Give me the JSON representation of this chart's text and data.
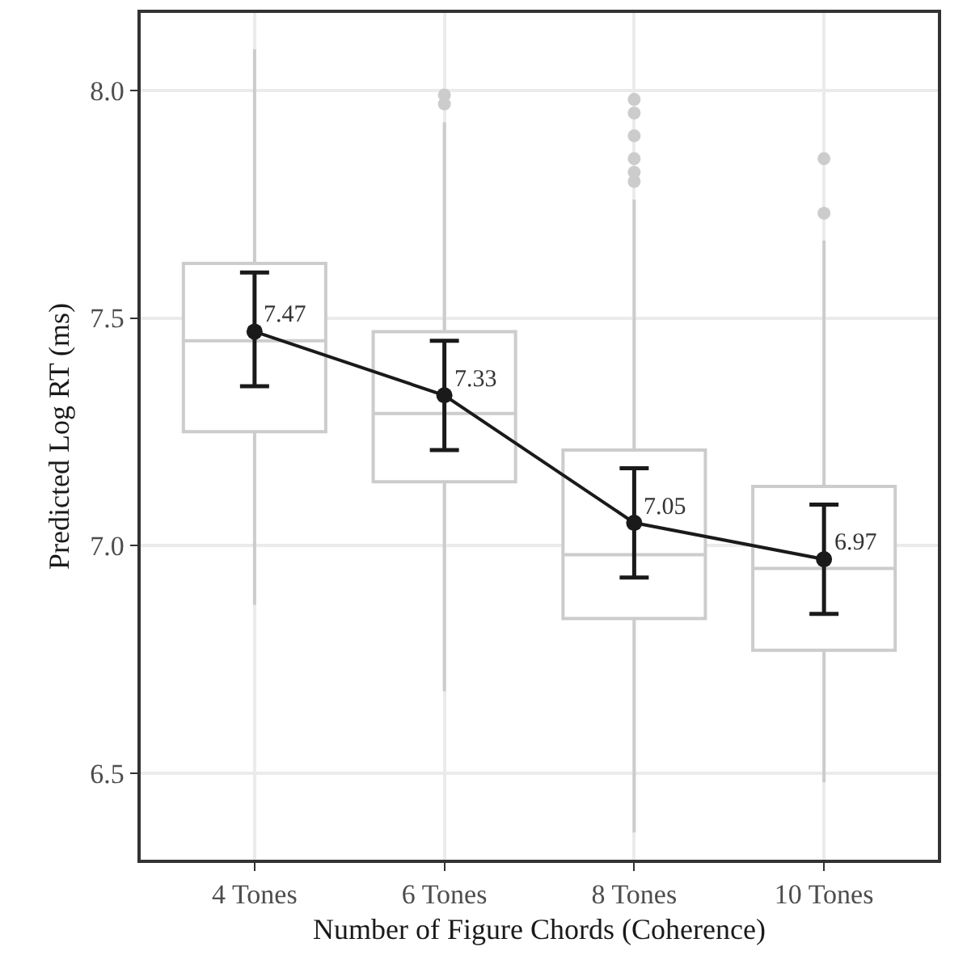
{
  "chart_data": {
    "type": "box",
    "xlabel": "Number of Figure Chords (Coherence)",
    "ylabel": "Predicted Log RT (ms)",
    "categories": [
      "4 Tones",
      "6 Tones",
      "8 Tones",
      "10 Tones"
    ],
    "ylim": [
      6.31,
      8.17
    ],
    "yticks": [
      6.5,
      {
        "value": 7,
        "label": "7.0"
      },
      7.5,
      {
        "value": 8,
        "label": "8.0"
      }
    ],
    "grid": true,
    "series": [
      {
        "color": "#cccccc",
        "boxes": [
          {
            "low": 6.87,
            "q1": 7.25,
            "median": 7.45,
            "q3": 7.62,
            "high": 8.09
          },
          {
            "low": 6.68,
            "q1": 7.14,
            "median": 7.29,
            "q3": 7.47,
            "high": 7.93,
            "outliers": [
              7.99,
              7.97
            ]
          },
          {
            "low": 6.37,
            "q1": 6.84,
            "median": 6.98,
            "q3": 7.21,
            "high": 7.76,
            "outliers": [
              7.98,
              7.95,
              7.9,
              7.85,
              7.82,
              7.8
            ]
          },
          {
            "low": 6.48,
            "q1": 6.77,
            "median": 6.95,
            "q3": 7.13,
            "high": 7.67,
            "outliers": [
              7.85,
              7.73
            ]
          }
        ]
      },
      {
        "type": "line",
        "color": "#1a1a1a",
        "marker": "circle",
        "line_style": "solid",
        "values": [
          7.47,
          7.33,
          7.05,
          6.97
        ],
        "errors": [
          [
            7.35,
            7.6
          ],
          [
            7.21,
            7.45
          ],
          [
            6.93,
            7.17
          ],
          [
            6.85,
            7.09
          ]
        ],
        "value_labels": [
          "7.47",
          "7.33",
          "7.05",
          "6.97"
        ]
      }
    ]
  }
}
